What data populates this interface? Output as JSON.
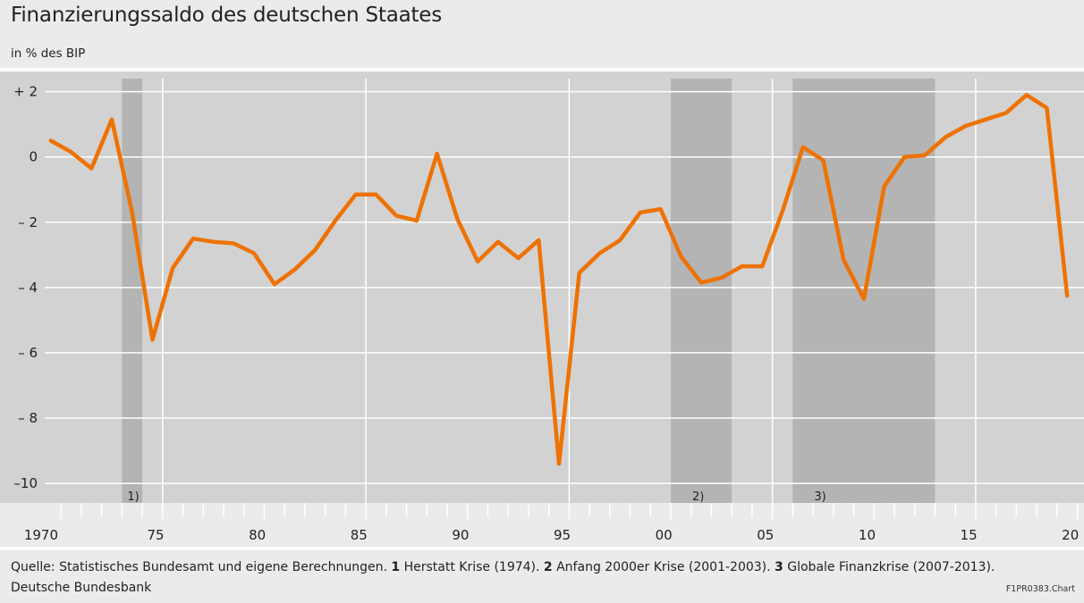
{
  "header": {
    "title": "Finanzierungssaldo des deutschen Staates",
    "subtitle": "in % des BIP"
  },
  "footer": {
    "source_prefix": "Quelle: Statistisches Bundesamt und eigene Berechnungen.",
    "notes": [
      {
        "num": "1",
        "text": "Herstatt Krise (1974)."
      },
      {
        "num": "2",
        "text": "Anfang 2000er Krise (2001-2003)."
      },
      {
        "num": "3",
        "text": "Globale Finanzkrise (2007-2013)."
      }
    ],
    "publisher": "Deutsche Bundesbank",
    "chart_code": "F1PR0383.Chart"
  },
  "colors": {
    "line": "#ee7203",
    "plot_bg": "#d2d2d2",
    "shade": "#b4b4b4",
    "grid": "#ffffff"
  },
  "chart_data": {
    "type": "line",
    "xlim": [
      1969.7,
      2020.3
    ],
    "ylim": [
      -10.6,
      2.4
    ],
    "grid": true,
    "y_ticks": [
      {
        "value": 2,
        "label": "+  2"
      },
      {
        "value": 0,
        "label": "0"
      },
      {
        "value": -2,
        "label": "–  2"
      },
      {
        "value": -4,
        "label": "–  4"
      },
      {
        "value": -6,
        "label": "–  6"
      },
      {
        "value": -8,
        "label": "–  8"
      },
      {
        "value": -10,
        "label": "–10"
      }
    ],
    "x_ticks": [
      {
        "value": 1970,
        "label": "1970"
      },
      {
        "value": 1975,
        "label": "75"
      },
      {
        "value": 1980,
        "label": "80"
      },
      {
        "value": 1985,
        "label": "85"
      },
      {
        "value": 1990,
        "label": "90"
      },
      {
        "value": 1995,
        "label": "95"
      },
      {
        "value": 2000,
        "label": "00"
      },
      {
        "value": 2005,
        "label": "05"
      },
      {
        "value": 2010,
        "label": "10"
      },
      {
        "value": 2015,
        "label": "15"
      },
      {
        "value": 2020,
        "label": "20"
      }
    ],
    "x_vgrid": [
      1975.5,
      1985.5,
      1995.5,
      2005.5,
      2015.5
    ],
    "shaded_periods": [
      {
        "from": 1973.5,
        "to": 1974.5,
        "label": "1)"
      },
      {
        "from": 2000.5,
        "to": 2003.5,
        "label": "2)"
      },
      {
        "from": 2006.5,
        "to": 2013.5,
        "label": "3)"
      }
    ],
    "series": [
      {
        "x": [
          1970,
          1971,
          1972,
          1973,
          1974,
          1975,
          1976,
          1977,
          1978,
          1979,
          1980,
          1981,
          1982,
          1983,
          1984,
          1985,
          1986,
          1987,
          1988,
          1989,
          1990,
          1991,
          1992,
          1993,
          1994,
          1995,
          1996,
          1997,
          1998,
          1999,
          2000,
          2001,
          2002,
          2003,
          2004,
          2005,
          2006,
          2007,
          2008,
          2009,
          2010,
          2011,
          2012,
          2013,
          2014,
          2015,
          2016,
          2017,
          2018,
          2019,
          2020
        ],
        "values": [
          0.5,
          0.15,
          -0.35,
          1.15,
          -1.7,
          -5.6,
          -3.4,
          -2.5,
          -2.6,
          -2.65,
          -2.95,
          -3.9,
          -3.45,
          -2.85,
          -1.95,
          -1.15,
          -1.15,
          -1.8,
          -1.95,
          0.1,
          -1.9,
          -3.2,
          -2.6,
          -3.1,
          -2.55,
          -9.4,
          -3.55,
          -2.95,
          -2.55,
          -1.7,
          -1.6,
          -3.05,
          -3.85,
          -3.7,
          -3.35,
          -3.35,
          -1.65,
          0.3,
          -0.1,
          -3.15,
          -4.35,
          -0.9,
          0.0,
          0.05,
          0.6,
          0.95,
          1.15,
          1.35,
          1.9,
          1.5,
          -4.25
        ]
      }
    ]
  }
}
